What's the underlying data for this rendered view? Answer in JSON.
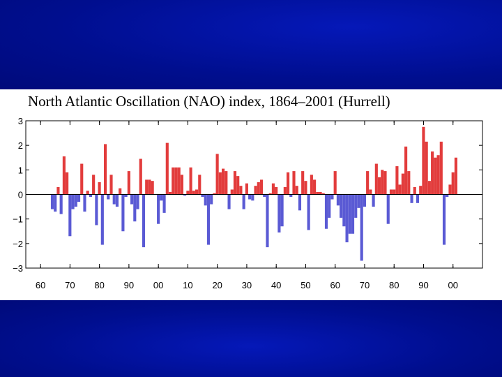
{
  "chart_data": {
    "type": "bar",
    "title": "North Atlantic Oscillation (NAO) index, 1864–2001 (Hurrell)",
    "xlabel": "",
    "ylabel": "",
    "xlim": [
      1855,
      2010
    ],
    "ylim": [
      -3,
      3
    ],
    "yticks": [
      3,
      2,
      1,
      0,
      -1,
      -2,
      -3
    ],
    "ytick_labels": [
      "3",
      "2",
      "1",
      "0",
      "−1",
      "−2",
      "−3"
    ],
    "xticks": [
      1860,
      1870,
      1880,
      1890,
      1900,
      1910,
      1920,
      1930,
      1940,
      1950,
      1960,
      1970,
      1980,
      1990,
      2000
    ],
    "xtick_labels": [
      "60",
      "70",
      "80",
      "90",
      "00",
      "10",
      "20",
      "30",
      "40",
      "50",
      "60",
      "70",
      "80",
      "90",
      "00"
    ],
    "positive_color": "#e23c3c",
    "negative_color": "#5a5ad4",
    "years": [
      1864,
      1865,
      1866,
      1867,
      1868,
      1869,
      1870,
      1871,
      1872,
      1873,
      1874,
      1875,
      1876,
      1877,
      1878,
      1879,
      1880,
      1881,
      1882,
      1883,
      1884,
      1885,
      1886,
      1887,
      1888,
      1889,
      1890,
      1891,
      1892,
      1893,
      1894,
      1895,
      1896,
      1897,
      1898,
      1899,
      1900,
      1901,
      1902,
      1903,
      1904,
      1905,
      1906,
      1907,
      1908,
      1909,
      1910,
      1911,
      1912,
      1913,
      1914,
      1915,
      1916,
      1917,
      1918,
      1919,
      1920,
      1921,
      1922,
      1923,
      1924,
      1925,
      1926,
      1927,
      1928,
      1929,
      1930,
      1931,
      1932,
      1933,
      1934,
      1935,
      1936,
      1937,
      1938,
      1939,
      1940,
      1941,
      1942,
      1943,
      1944,
      1945,
      1946,
      1947,
      1948,
      1949,
      1950,
      1951,
      1952,
      1953,
      1954,
      1955,
      1956,
      1957,
      1958,
      1959,
      1960,
      1961,
      1962,
      1963,
      1964,
      1965,
      1966,
      1967,
      1968,
      1969,
      1970,
      1971,
      1972,
      1973,
      1974,
      1975,
      1976,
      1977,
      1978,
      1979,
      1980,
      1981,
      1982,
      1983,
      1984,
      1985,
      1986,
      1987,
      1988,
      1989,
      1990,
      1991,
      1992,
      1993,
      1994,
      1995,
      1996,
      1997,
      1998,
      1999,
      2000,
      2001
    ],
    "values": [
      -0.6,
      -0.7,
      0.3,
      -0.8,
      1.55,
      0.9,
      -1.7,
      -0.6,
      -0.5,
      -0.3,
      1.25,
      -0.7,
      0.15,
      -0.1,
      0.8,
      -1.25,
      0.5,
      -2.05,
      2.05,
      -0.2,
      0.8,
      -0.4,
      -0.5,
      0.25,
      -1.5,
      -0.1,
      0.95,
      -0.4,
      -1.1,
      -0.6,
      1.45,
      -2.15,
      0.6,
      0.6,
      0.55,
      0.0,
      -1.2,
      -0.25,
      -0.75,
      2.1,
      0.1,
      1.1,
      1.1,
      1.1,
      0.8,
      -0.05,
      0.15,
      1.1,
      0.15,
      0.2,
      0.8,
      -0.1,
      -0.45,
      -2.05,
      -0.4,
      0.05,
      1.65,
      0.9,
      1.05,
      0.95,
      -0.6,
      0.2,
      0.95,
      0.75,
      0.35,
      -0.6,
      0.45,
      -0.2,
      -0.25,
      0.35,
      0.5,
      0.6,
      -0.1,
      -2.15,
      0.05,
      0.45,
      0.3,
      -1.55,
      -1.3,
      0.3,
      0.9,
      -0.1,
      0.95,
      0.35,
      -0.65,
      0.95,
      0.55,
      -1.45,
      0.8,
      0.6,
      0.1,
      0.1,
      0.05,
      -1.4,
      -0.95,
      -0.2,
      0.95,
      -0.45,
      -0.95,
      -1.3,
      -1.95,
      -1.6,
      -1.6,
      -0.95,
      -0.55,
      -2.7,
      -0.5,
      0.95,
      0.2,
      -0.5,
      1.25,
      0.7,
      1.0,
      0.95,
      -1.2,
      0.2,
      0.2,
      1.15,
      0.4,
      0.85,
      1.95,
      0.95,
      -0.35,
      0.3,
      -0.35,
      0.35,
      2.75,
      2.15,
      0.55,
      1.75,
      1.5,
      1.6,
      2.15,
      -2.05,
      -0.1,
      0.4,
      0.9,
      1.5
    ]
  }
}
